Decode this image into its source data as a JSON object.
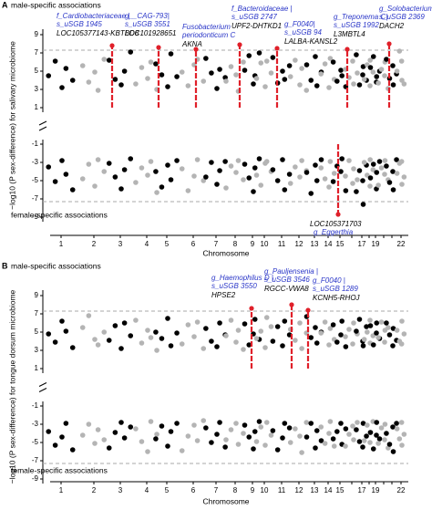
{
  "chart_data": [
    {
      "type": "scatter",
      "panel": "A",
      "title_top": "male-specific associations",
      "title_bottom": "female-specific associations",
      "ylabel": "−log10 (P sex-difference) for salivary microbiome",
      "xlabel": "Chromosome",
      "categories": [
        "1",
        "2",
        "3",
        "4",
        "5",
        "6",
        "7",
        "8",
        "9",
        "10",
        "11",
        "12",
        "13",
        "14",
        "15",
        null,
        "17",
        null,
        "19",
        null,
        null,
        "22"
      ],
      "colors": [
        "#000000",
        "#b4b4b4"
      ],
      "highlight_color": "#e0202a",
      "ylim": [
        0.5,
        9.6
      ],
      "yticks": [
        1,
        3,
        5,
        7,
        9
      ],
      "y2lim": [
        -9.5,
        -0.5
      ],
      "y2ticks": [
        -1,
        -3,
        -5,
        -7,
        -9
      ],
      "thresholds": [
        7.3,
        -7.3
      ],
      "male_values": [
        [
          4.5,
          6.1,
          3.2,
          5.3,
          4.0
        ],
        [
          5.6,
          3.8,
          4.9,
          2.9,
          6.3
        ],
        [
          6.2,
          4.1,
          3.5,
          5.0,
          7.1
        ],
        [
          3.6,
          5.4,
          4.2,
          6.0,
          3.0
        ],
        [
          5.8,
          4.6,
          3.3,
          6.9,
          4.4
        ],
        [
          4.9,
          3.4,
          5.7,
          6.3,
          3.9
        ],
        [
          6.4,
          4.8,
          3.1,
          5.2,
          4.3
        ],
        [
          3.9,
          5.5,
          4.6,
          2.8,
          6.0
        ],
        [
          5.1,
          6.7,
          3.6,
          4.5,
          7.0
        ],
        [
          4.2,
          5.9,
          3.3,
          6.1,
          4.8
        ],
        [
          6.5,
          3.7,
          5.0,
          4.1,
          5.6
        ],
        [
          4.4,
          6.2,
          3.5,
          5.3,
          2.9
        ],
        [
          5.7,
          4.0,
          6.6,
          3.4,
          4.9
        ],
        [
          4.7,
          5.8,
          3.2,
          6.4,
          4.1
        ],
        [
          6.0,
          3.9,
          5.1,
          4.5,
          3.3
        ],
        [
          5.2,
          4.3,
          6.1,
          3.6,
          4.8
        ],
        [
          6.8,
          3.5,
          4.6,
          5.5,
          4.0
        ],
        [
          4.1,
          5.7,
          3.4,
          6.2,
          4.9
        ],
        [
          5.4,
          6.6,
          3.8,
          4.4,
          5.0
        ],
        [
          3.7,
          5.2,
          4.5,
          6.0,
          3.1
        ],
        [
          6.3,
          4.2,
          5.6,
          3.5,
          4.7
        ],
        [
          5.0,
          7.2,
          4.0,
          6.1,
          3.6
        ]
      ],
      "female_values": [
        [
          -3.5,
          -5.1,
          -2.8,
          -4.3,
          -6.0
        ],
        [
          -4.8,
          -3.2,
          -5.6,
          -2.7,
          -4.0
        ],
        [
          -3.1,
          -4.6,
          -5.9,
          -3.8,
          -2.6
        ],
        [
          -5.2,
          -3.6,
          -4.4,
          -2.9,
          -6.3
        ],
        [
          -4.0,
          -5.7,
          -3.3,
          -4.9,
          -2.8
        ],
        [
          -3.7,
          -6.1,
          -4.5,
          -2.7,
          -5.0
        ],
        [
          -4.6,
          -3.0,
          -5.4,
          -3.9,
          -2.9
        ],
        [
          -5.8,
          -3.4,
          -4.1,
          -2.8,
          -4.9
        ],
        [
          -3.2,
          -4.7,
          -6.2,
          -3.6,
          -2.6
        ],
        [
          -4.4,
          -5.5,
          -3.1,
          -2.9,
          -4.0
        ],
        [
          -3.8,
          -5.0,
          -2.7,
          -6.0,
          -4.3
        ],
        [
          -5.3,
          -3.5,
          -4.6,
          -2.8,
          -3.9
        ],
        [
          -4.1,
          -6.4,
          -3.3,
          -5.0,
          -2.7
        ],
        [
          -3.6,
          -4.8,
          -5.7,
          -2.9,
          -4.2
        ],
        [
          -5.1,
          -3.4,
          -4.0,
          -2.6,
          -6.1
        ],
        [
          -4.5,
          -2.8,
          -5.3,
          -3.7,
          -4.9
        ],
        [
          -6.2,
          -3.9,
          -5.0,
          -7.6,
          -3.3
        ],
        [
          -3.0,
          -4.4,
          -5.6,
          -2.7,
          -3.8
        ],
        [
          -4.7,
          -3.2,
          -5.9,
          -4.1,
          -2.9
        ],
        [
          -5.5,
          -3.6,
          -4.3,
          -2.8,
          -4.9
        ],
        [
          -3.4,
          -5.2,
          -4.0,
          -6.0,
          -2.7
        ],
        [
          -4.2,
          -3.1,
          -5.4,
          -2.9,
          -4.6
        ]
      ],
      "annotations": [
        {
          "taxon": [
            "f_Cardiobacteriaceae |",
            "s_uSGB 1945"
          ],
          "gene": "LOC105377143-KBTBD8",
          "value": 7.8
        },
        {
          "taxon": [
            "g__CAG-793|",
            "s_uSGB 3551"
          ],
          "gene": "LOC101928651",
          "value": 7.6
        },
        {
          "taxon": [
            "Fusobacterium",
            "periodonticum C"
          ],
          "gene": "AKNA",
          "value": 7.4
        },
        {
          "taxon": [
            "f_Bacteroidaceae |",
            "s_uSGB 2747"
          ],
          "gene": "UPF2-DHTKD1",
          "value": 7.9
        },
        {
          "taxon": [
            "g_F0040|",
            "s_uSGB 94"
          ],
          "gene": "LALBA-KANSL2",
          "value": 7.5
        },
        {
          "taxon": [
            "g_Treponema C|",
            "s_uSGB 1992"
          ],
          "gene": "L3MBTL4",
          "value": 7.4
        },
        {
          "taxon": [
            "g_Solobacterium",
            "s_uSGB 2369"
          ],
          "gene": "DACH2",
          "value": 8.0
        },
        {
          "taxon": [
            "g_Eggerthia"
          ],
          "gene": "LOC105371703",
          "value": -8.7
        }
      ]
    },
    {
      "type": "scatter",
      "panel": "B",
      "title_top": "male-specific associations",
      "title_bottom": "female-specific associations",
      "ylabel": "−log10 (P sex-difference) for tongue dorsum microbiome",
      "xlabel": "Chromosome",
      "categories": [
        "1",
        "2",
        "3",
        "4",
        "5",
        "6",
        "7",
        "8",
        "9",
        "10",
        "11",
        "12",
        "13",
        "14",
        "15",
        null,
        "17",
        null,
        "19",
        null,
        null,
        "22"
      ],
      "colors": [
        "#000000",
        "#b4b4b4"
      ],
      "highlight_color": "#e0202a",
      "ylim": [
        0.5,
        9.6
      ],
      "yticks": [
        1,
        3,
        5,
        7,
        9
      ],
      "y2lim": [
        -9.5,
        -0.5
      ],
      "y2ticks": [
        -1,
        -3,
        -5,
        -7,
        -9
      ],
      "thresholds": [
        7.3,
        -7.3
      ],
      "male_values": [
        [
          4.8,
          3.9,
          6.2,
          5.1,
          3.3
        ],
        [
          5.5,
          6.8,
          4.2,
          3.6,
          5.0
        ],
        [
          4.1,
          5.7,
          3.2,
          6.0,
          4.6
        ],
        [
          6.3,
          3.8,
          5.2,
          4.4,
          3.0
        ],
        [
          5.0,
          4.3,
          6.5,
          3.5,
          4.9
        ],
        [
          3.7,
          5.8,
          4.5,
          6.1,
          3.2
        ],
        [
          5.4,
          4.0,
          3.4,
          6.0,
          4.7
        ],
        [
          4.6,
          6.3,
          3.9,
          5.2,
          3.1
        ],
        [
          5.9,
          3.6,
          4.8,
          6.4,
          4.2
        ],
        [
          4.3,
          5.1,
          3.3,
          6.6,
          5.6
        ],
        [
          4.0,
          5.6,
          3.5,
          6.2,
          4.7
        ],
        [
          5.3,
          4.1,
          6.0,
          3.2,
          4.9
        ],
        [
          6.7,
          4.4,
          5.5,
          3.8,
          5.0
        ],
        [
          4.9,
          6.1,
          3.6,
          5.4,
          4.2
        ],
        [
          5.8,
          3.9,
          4.7,
          6.2,
          3.4
        ],
        [
          4.5,
          5.3,
          3.7,
          6.0,
          4.8
        ],
        [
          5.1,
          6.4,
          4.0,
          3.5,
          5.6
        ],
        [
          4.2,
          5.0,
          6.3,
          3.8,
          4.6
        ],
        [
          5.7,
          3.6,
          4.9,
          6.0,
          4.3
        ],
        [
          4.4,
          6.1,
          3.9,
          5.2,
          5.5
        ],
        [
          6.0,
          4.7,
          3.5,
          5.4,
          4.1
        ],
        [
          5.2,
          4.0,
          6.2,
          3.7,
          4.8
        ]
      ],
      "female_values": [
        [
          -3.8,
          -5.3,
          -4.4,
          -2.9,
          -5.8
        ],
        [
          -4.2,
          -3.0,
          -5.1,
          -3.6,
          -4.7
        ],
        [
          -5.6,
          -3.9,
          -2.8,
          -4.5,
          -3.3
        ],
        [
          -3.5,
          -4.9,
          -6.0,
          -2.7,
          -4.1
        ],
        [
          -4.6,
          -3.2,
          -5.4,
          -3.8,
          -2.9
        ],
        [
          -5.9,
          -4.3,
          -3.1,
          -4.8,
          -2.6
        ],
        [
          -3.4,
          -5.0,
          -4.1,
          -2.8,
          -5.5
        ],
        [
          -4.7,
          -3.6,
          -2.9,
          -5.2,
          -4.0
        ],
        [
          -3.1,
          -4.4,
          -5.7,
          -3.8,
          -2.7
        ],
        [
          -4.9,
          -3.3,
          -5.3,
          -2.8,
          -4.2
        ],
        [
          -3.7,
          -5.8,
          -4.5,
          -2.9,
          -3.4
        ],
        [
          -5.0,
          -3.5,
          -4.3,
          -6.1,
          -2.8
        ],
        [
          -4.4,
          -2.9,
          -5.6,
          -3.7,
          -4.8
        ],
        [
          -3.3,
          -5.1,
          -4.0,
          -2.7,
          -5.4
        ],
        [
          -4.6,
          -3.8,
          -2.9,
          -5.2,
          -3.5
        ],
        [
          -5.4,
          -4.1,
          -3.2,
          -4.7,
          -2.8
        ],
        [
          -3.6,
          -4.9,
          -5.5,
          -2.9,
          -4.3
        ],
        [
          -4.8,
          -3.1,
          -5.0,
          -3.9,
          -2.7
        ],
        [
          -3.9,
          -5.7,
          -4.2,
          -2.8,
          -4.6
        ],
        [
          -5.1,
          -3.4,
          -4.7,
          -3.0,
          -5.6
        ],
        [
          -4.0,
          -5.2,
          -3.3,
          -6.0,
          -2.9
        ],
        [
          -3.5,
          -4.6,
          -5.3,
          -2.8,
          -4.1
        ]
      ],
      "annotations": [
        {
          "taxon": [
            "g_Haemophilus D |",
            "s_uSGB 3550"
          ],
          "gene": "HPSE2",
          "value": 7.6
        },
        {
          "taxon": [
            "g_Pauljensenia |",
            "s_uSGB 3546"
          ],
          "gene": "RGCC-VWA8",
          "value": 8.0
        },
        {
          "taxon": [
            "g_F0040 |",
            "s_uSGB 1289"
          ],
          "gene": "KCNH5-RHOJ",
          "value": 7.4
        }
      ]
    }
  ]
}
